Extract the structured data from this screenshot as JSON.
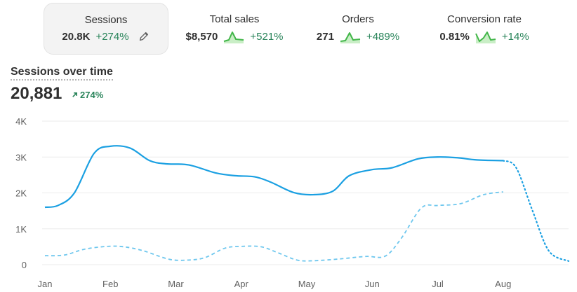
{
  "metrics": [
    {
      "label": "Sessions",
      "value": "20.8K",
      "change": "+274%",
      "selected": true
    },
    {
      "label": "Total sales",
      "value": "$8,570",
      "change": "+521%"
    },
    {
      "label": "Orders",
      "value": "271",
      "change": "+489%"
    },
    {
      "label": "Conversion rate",
      "value": "0.81%",
      "change": "+14%"
    }
  ],
  "panel": {
    "title": "Sessions over time",
    "total": "20,881",
    "total_change": "274%"
  },
  "colors": {
    "primary": "#1ba0e2",
    "comparison": "#6ec7ee",
    "positive": "#29845a",
    "spark": "#42b649"
  },
  "chart_data": {
    "type": "line",
    "categories": [
      "Jan",
      "Feb",
      "Mar",
      "Apr",
      "May",
      "Jun",
      "Jul",
      "Aug"
    ],
    "y_ticks": [
      "4K",
      "3K",
      "2K",
      "1K",
      "0"
    ],
    "ylim": [
      0,
      4000
    ],
    "grid": true,
    "series": [
      {
        "style": "solid",
        "x": [
          0,
          0.2,
          0.45,
          0.75,
          1.0,
          1.3,
          1.6,
          1.85,
          2.2,
          2.6,
          2.9,
          3.2,
          3.45,
          3.8,
          4.1,
          4.4,
          4.65,
          5.0,
          5.3,
          5.7,
          6.0,
          6.3,
          6.6,
          7.0
        ],
        "values": [
          1600,
          1650,
          2000,
          3100,
          3300,
          3250,
          2900,
          2810,
          2780,
          2560,
          2480,
          2450,
          2300,
          2010,
          1950,
          2050,
          2480,
          2650,
          2700,
          2950,
          3000,
          2980,
          2920,
          2900
        ]
      },
      {
        "style": "dotted",
        "x": [
          7.0,
          7.2,
          7.45,
          7.7,
          8.0
        ],
        "values": [
          2900,
          2700,
          1500,
          380,
          100
        ]
      },
      {
        "style": "dashed",
        "x": [
          0,
          0.3,
          0.6,
          0.95,
          1.2,
          1.5,
          1.9,
          2.2,
          2.45,
          2.75,
          3.0,
          3.3,
          3.55,
          3.85,
          4.1,
          4.5,
          4.9,
          5.2,
          5.45,
          5.75,
          6.0,
          6.35,
          6.7,
          7.0
        ],
        "values": [
          250,
          270,
          430,
          510,
          500,
          390,
          150,
          130,
          200,
          460,
          510,
          500,
          340,
          130,
          110,
          160,
          230,
          240,
          750,
          1580,
          1650,
          1700,
          1950,
          2030
        ]
      }
    ]
  }
}
